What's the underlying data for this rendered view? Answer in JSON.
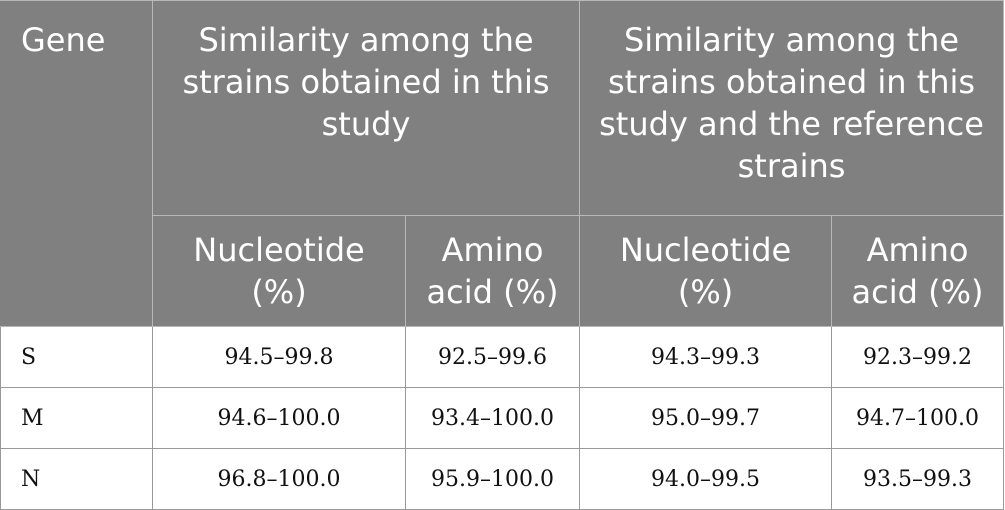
{
  "header": {
    "gene": "Gene",
    "group1": "Similarity among the strains obtained in this study",
    "group2": "Similarity among the strains obtained in this study and the reference strains",
    "sub": [
      "Nucleotide (%)",
      "Amino acid (%)",
      "Nucleotide (%)",
      "Amino acid (%)"
    ]
  },
  "rows": [
    {
      "gene": "S",
      "values": [
        "94.5–99.8",
        "92.5–99.6",
        "94.3–99.3",
        "92.3–99.2"
      ]
    },
    {
      "gene": "M",
      "values": [
        "94.6–100.0",
        "93.4–100.0",
        "95.0–99.7",
        "94.7–100.0"
      ]
    },
    {
      "gene": "N",
      "values": [
        "96.8–100.0",
        "95.9–100.0",
        "94.0–99.5",
        "93.5–99.3"
      ]
    }
  ],
  "colors": {
    "header_bg": "#808080",
    "header_text": "#ffffff",
    "body_text": "#111111",
    "grid": "#9a9a9a"
  }
}
